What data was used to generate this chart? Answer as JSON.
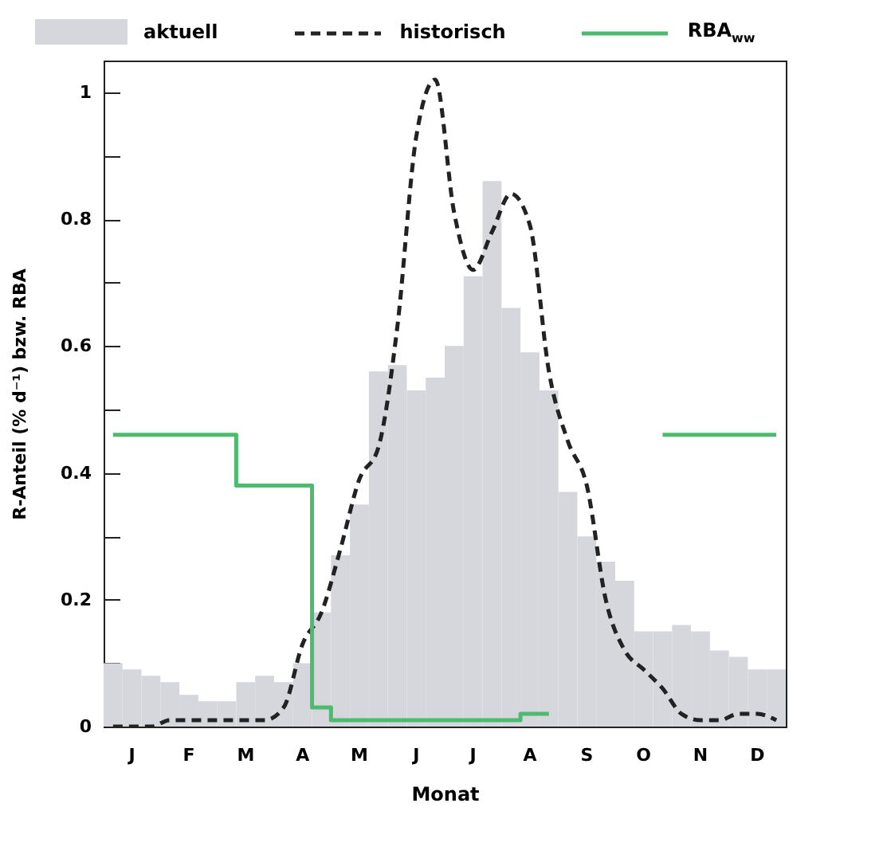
{
  "chart_data": {
    "type": "bar",
    "xlabel": "Monat",
    "ylabel": "R-Anteil (% d⁻¹) bzw. RBA",
    "categories": [
      null,
      "J",
      null,
      null,
      "F",
      null,
      null,
      "M",
      null,
      null,
      "A",
      null,
      null,
      "M",
      null,
      null,
      "J",
      null,
      null,
      "J",
      null,
      null,
      "A",
      null,
      null,
      "S",
      null,
      null,
      "O",
      null,
      null,
      "N",
      null,
      null,
      "D",
      null
    ],
    "ylim": [
      0,
      1.05
    ],
    "yticks": [
      0,
      {
        "value": 0.1,
        "label": null
      },
      0.2,
      {
        "value": 0.3,
        "label": null
      },
      0.4,
      {
        "value": 0.5,
        "label": null
      },
      0.6,
      {
        "value": 0.7,
        "label": null
      },
      0.8,
      {
        "value": 0.9,
        "label": null
      },
      1
    ],
    "legend": "top",
    "series": [
      {
        "name": "aktuell",
        "color": "#d5d7dd",
        "values": [
          0.1,
          0.09,
          0.08,
          0.07,
          0.05,
          0.04,
          0.04,
          0.07,
          0.08,
          0.07,
          0.1,
          0.18,
          0.27,
          0.35,
          0.56,
          0.57,
          0.53,
          0.55,
          0.6,
          0.71,
          0.86,
          0.66,
          0.59,
          0.53,
          0.37,
          0.3,
          0.26,
          0.23,
          0.15,
          0.15,
          0.16,
          0.15,
          0.12,
          0.11,
          0.09,
          0.09
        ]
      },
      {
        "name": "historisch",
        "type": "line",
        "color": "#222222",
        "line_style": "dashed",
        "values": [
          0,
          0,
          0,
          0.01,
          0.01,
          0.01,
          0.01,
          0.01,
          0.01,
          0.03,
          0.13,
          0.18,
          0.28,
          0.39,
          0.44,
          0.63,
          0.93,
          1.02,
          0.81,
          0.72,
          0.78,
          0.84,
          0.79,
          0.56,
          0.45,
          0.38,
          0.2,
          0.12,
          0.09,
          0.06,
          0.02,
          0.01,
          0.01,
          0.02,
          0.02,
          0.01
        ]
      },
      {
        "name": "RBA$_{ww}$",
        "type": "step",
        "color": "#4dbb6e",
        "line_style": "solid",
        "values": [
          0.46,
          0.46,
          0.46,
          0.46,
          0.46,
          0.46,
          0.46,
          0.38,
          0.38,
          0.38,
          0.38,
          0.03,
          0.01,
          0.01,
          0.01,
          0.01,
          0.01,
          0.01,
          0.01,
          0.01,
          0.01,
          0.01,
          0.02,
          0.02,
          null,
          null,
          null,
          null,
          null,
          0.46,
          0.46,
          0.46,
          0.46,
          0.46,
          0.46,
          0.46
        ]
      }
    ]
  }
}
